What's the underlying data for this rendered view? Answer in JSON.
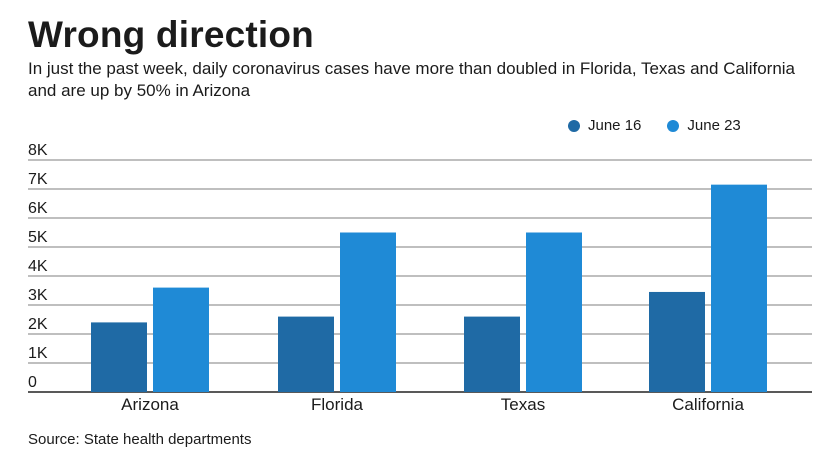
{
  "title": "Wrong direction",
  "subtitle": "In just the past week, daily coronavirus cases have more than doubled in Florida, Texas and California and are up by 50% in Arizona",
  "source": "Source: State health departments",
  "colors": {
    "june16": "#1f6aa5",
    "june23": "#1f8ad6",
    "grid": "#555555",
    "baseline": "#222222"
  },
  "chart_data": {
    "type": "bar",
    "categories": [
      "Arizona",
      "Florida",
      "Texas",
      "California"
    ],
    "series": [
      {
        "name": "June 16",
        "values": [
          2400,
          2600,
          2600,
          3450
        ]
      },
      {
        "name": "June 23",
        "values": [
          3600,
          5500,
          5500,
          7150
        ]
      }
    ],
    "ylim": [
      0,
      8000
    ],
    "yticks": [
      0,
      1000,
      2000,
      3000,
      4000,
      5000,
      6000,
      7000,
      8000
    ],
    "ytick_labels": [
      "0",
      "1K",
      "2K",
      "3K",
      "4K",
      "5K",
      "6K",
      "7K",
      "8K"
    ],
    "legend_position": "top-right",
    "grid": true
  }
}
